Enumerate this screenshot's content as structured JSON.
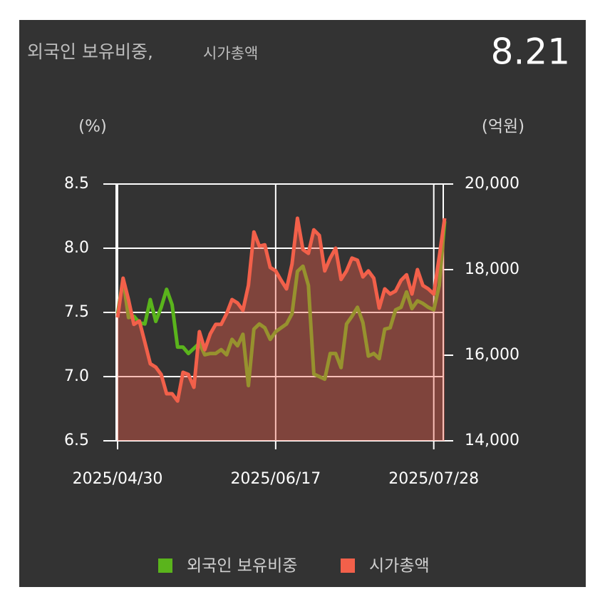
{
  "chart_data": {
    "type": "line",
    "title": "외국인 보유비중,",
    "subtitle": "시가총액",
    "current_value": 8.21,
    "y_label": "(%)",
    "y2_label": "(억원)",
    "categories": [
      "2025/04/30",
      null,
      null,
      null,
      null,
      null,
      null,
      null,
      null,
      null,
      null,
      null,
      null,
      null,
      null,
      null,
      null,
      null,
      null,
      null,
      null,
      null,
      null,
      null,
      null,
      null,
      null,
      null,
      null,
      "2025/06/17",
      null,
      null,
      null,
      null,
      null,
      null,
      null,
      null,
      null,
      null,
      null,
      null,
      null,
      null,
      null,
      null,
      null,
      null,
      null,
      null,
      null,
      null,
      null,
      null,
      null,
      null,
      null,
      null,
      "2025/07/28",
      null,
      null
    ],
    "ylim": [
      6.5,
      8.5
    ],
    "yticks": [
      6.5,
      {
        "value": 7,
        "label": "7.0"
      },
      7.5,
      {
        "value": 8,
        "label": "8.0"
      },
      8.5
    ],
    "y2lim": [
      14000,
      20000
    ],
    "y2ticks": [
      {
        "value": 14000,
        "label": "14,000"
      },
      {
        "value": 16000,
        "label": "16,000"
      },
      {
        "value": 18000,
        "label": "18,000"
      },
      {
        "value": 20000,
        "label": "20,000"
      }
    ],
    "grid": true,
    "legend": "bottom",
    "series": [
      {
        "name": "외국인 보유비중",
        "color": "#5ab41c",
        "axis": "y",
        "values": [
          7.49,
          7.76,
          7.46,
          7.47,
          7.42,
          7.41,
          7.6,
          7.43,
          7.54,
          7.68,
          7.56,
          7.23,
          7.23,
          7.18,
          7.22,
          7.26,
          7.17,
          7.18,
          7.18,
          7.21,
          7.17,
          7.29,
          7.24,
          7.33,
          6.93,
          7.37,
          7.41,
          7.38,
          7.29,
          7.35,
          7.38,
          7.41,
          7.49,
          7.82,
          7.86,
          7.71,
          7.02,
          7.0,
          6.98,
          7.18,
          7.18,
          7.07,
          7.41,
          7.47,
          7.54,
          7.42,
          7.16,
          7.18,
          7.14,
          7.37,
          7.38,
          7.52,
          7.54,
          7.66,
          7.53,
          7.59,
          7.57,
          7.54,
          7.52,
          7.71,
          8.21
        ]
      },
      {
        "name": "시가총액",
        "color": "#f2604a",
        "axis": "y2",
        "values": [
          16880,
          17800,
          17300,
          16720,
          16800,
          16300,
          15800,
          15720,
          15550,
          15100,
          15100,
          14930,
          15600,
          15550,
          15250,
          16550,
          16130,
          16500,
          16720,
          16720,
          16970,
          17300,
          17220,
          17050,
          17630,
          18880,
          18550,
          18580,
          18050,
          17970,
          17750,
          17550,
          18130,
          19200,
          18470,
          18380,
          18930,
          18800,
          17970,
          18270,
          18500,
          17770,
          17970,
          18270,
          18220,
          17830,
          17970,
          17800,
          17100,
          17550,
          17430,
          17500,
          17750,
          17880,
          17430,
          18000,
          17630,
          17550,
          17430,
          18300,
          19200
        ]
      }
    ]
  }
}
